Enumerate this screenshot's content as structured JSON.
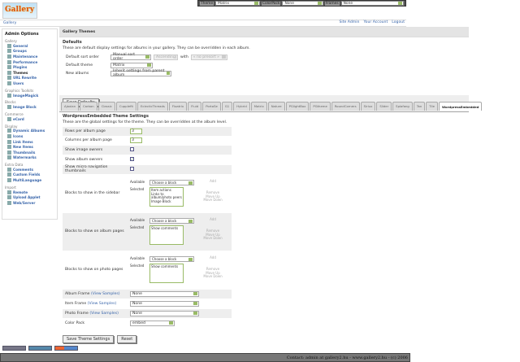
{
  "topbar": {
    "theme_label": "Theme",
    "theme_value": "Matrix",
    "colorpack_label": "ColorPack",
    "colorpack_value": "None",
    "frames_label": "Frames",
    "frames_value": "None"
  },
  "logo_text": "Gallery",
  "breadcrumb": "Gallery",
  "header_links": [
    "Site Admin",
    "Your Account",
    "Logout"
  ],
  "sidebar": {
    "title": "Admin Options",
    "groups": [
      {
        "label": "Gallery",
        "items": [
          "General",
          "Groups",
          "Maintenance",
          "Performance",
          "Plugins",
          "Themes",
          "URL Rewrite",
          "Users"
        ]
      },
      {
        "label": "Graphics Toolkits",
        "items": [
          "ImageMagick"
        ]
      },
      {
        "label": "Blocks",
        "items": [
          "Image Block"
        ]
      },
      {
        "label": "Commerce",
        "items": [
          "eCard"
        ]
      },
      {
        "label": "Display",
        "items": [
          "Dynamic Albums",
          "Icons",
          "Link Items",
          "New Items",
          "Thumbnails",
          "Watermarks"
        ]
      },
      {
        "label": "Extra Data",
        "items": [
          "Comments",
          "Custom Fields",
          "MultiLanguage"
        ]
      },
      {
        "label": "Import",
        "items": [
          "Remote",
          "Upload Applet",
          "Web/Server"
        ]
      }
    ],
    "current": "Themes"
  },
  "main": {
    "title": "Gallery Themes",
    "defaults": {
      "heading": "Defaults",
      "desc": "These are default display settings for albums in your gallery. They can be overridden in each album.",
      "sort_label": "Default sort order",
      "sort_value": "Manual sort order",
      "direction_value": "Ascending",
      "with_label": "with",
      "presort_value": "« no presort »",
      "theme_label": "Default theme",
      "theme_value": "Matrix",
      "new_albums_label": "New albums",
      "new_albums_value": "Inherit settings from parent album",
      "save": "Save Defaults"
    },
    "tabs": [
      "Ajaxian",
      "Carbon",
      "Classic",
      "Cupplefit",
      "EclecticThreads",
      "Floatrix",
      "Fluid",
      "PortaSe",
      "G1",
      "Hybrid",
      "Matrix",
      "Nature",
      "PGlightBox",
      "PGtheme",
      "RoundCorners",
      "Siriux",
      "Slider",
      "Splafang",
      "Tan",
      "Tile",
      "WordpressEmbedded"
    ],
    "active_tab": "WordpressEmbedded",
    "settings": {
      "heading": "WordpressEmbedded Theme Settings",
      "desc": "These are the global settings for the theme. They can be overridden at the album level.",
      "rows_label": "Rows per album page",
      "rows_value": "3",
      "cols_label": "Columns per album page",
      "cols_value": "3",
      "image_owners_label": "Show image owners",
      "image_owners": false,
      "album_owners_label": "Show album owners",
      "album_owners": true,
      "micro_label": "Show micro navigation thumbnails",
      "micro": false,
      "available_label": "Available",
      "selected_label": "Selected",
      "choose": "Choose a block",
      "add": "Add",
      "remove": "Remove",
      "move_up": "Move Up",
      "move_down": "Move Down",
      "sidebar_label": "Blocks to show in the sidebar",
      "sidebar_blocks": [
        "Item actions",
        "Links to album/photo peers",
        "Image Block"
      ],
      "album_label": "Blocks to show on album pages",
      "album_blocks": [
        "Show comments"
      ],
      "photo_label": "Blocks to show on photo pages",
      "photo_blocks": [
        "Show comments"
      ],
      "album_frame_label": "Album Frame",
      "item_frame_label": "Item Frame",
      "photo_frame_label": "Photo Frame",
      "view_samples": "(View Samples)",
      "album_frame": "None",
      "item_frame": "None",
      "photo_frame": "None",
      "colorpack_label": "Color Pack",
      "colorpack": "embed",
      "save": "Save Theme Settings",
      "reset": "Reset"
    }
  },
  "footer": "Contact: admin at gallery2.hu - www.gallery2.hu - (c) 2006"
}
